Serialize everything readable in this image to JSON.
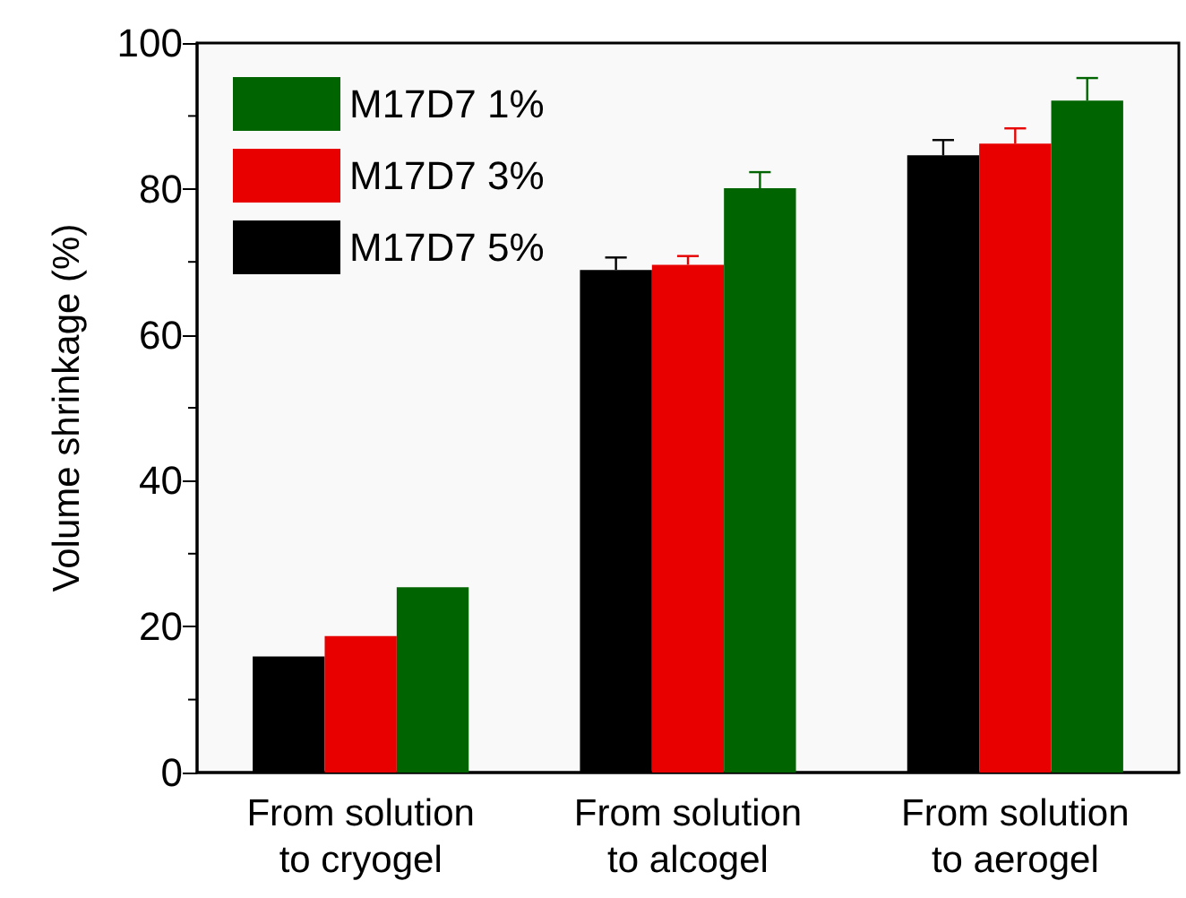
{
  "chart_data": {
    "type": "bar",
    "ylabel": "Volume shrinkage (%)",
    "categories": [
      "From solution\nto cryogel",
      "From solution\nto alcogel",
      "From solution\nto aerogel"
    ],
    "series": [
      {
        "name": "M17D7 5%",
        "color": "#000000",
        "values": [
          15.9,
          68.9,
          84.6
        ],
        "errors": [
          null,
          1.7,
          2.1
        ]
      },
      {
        "name": "M17D7 3%",
        "color": "#e80000",
        "values": [
          18.7,
          69.6,
          86.2
        ],
        "errors": [
          null,
          1.2,
          2.1
        ]
      },
      {
        "name": "M17D7 1%",
        "color": "#006400",
        "values": [
          25.4,
          80.1,
          92.1
        ],
        "errors": [
          null,
          2.2,
          3.1
        ]
      }
    ],
    "ylim": [
      0,
      100
    ],
    "yticks": [
      0,
      20,
      40,
      60,
      80,
      100
    ],
    "grid": false,
    "legend": "top left"
  }
}
